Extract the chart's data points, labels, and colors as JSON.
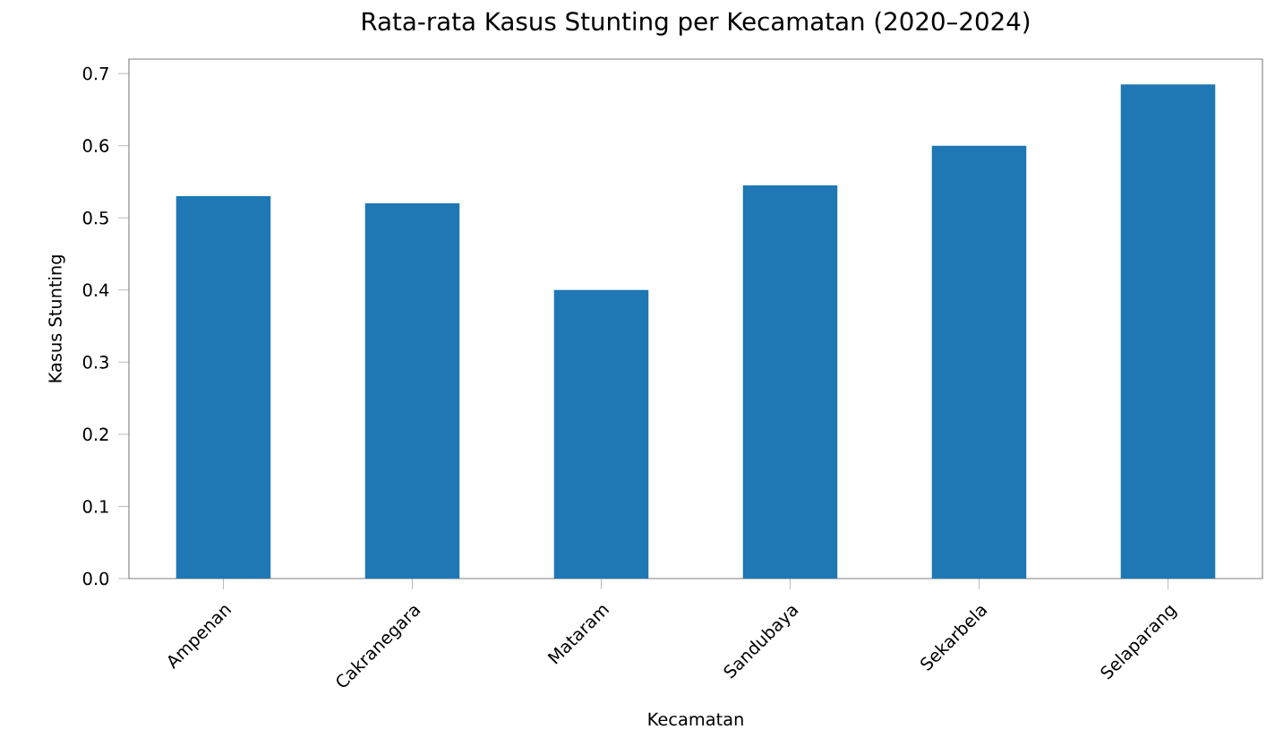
{
  "chart_data": {
    "type": "bar",
    "title": "Rata-rata Kasus Stunting per Kecamatan (2020–2024)",
    "xlabel": "Kecamatan",
    "ylabel": "Kasus Stunting",
    "categories": [
      "Ampenan",
      "Cakranegara",
      "Mataram",
      "Sandubaya",
      "Sekarbela",
      "Selaparang"
    ],
    "values": [
      0.53,
      0.52,
      0.4,
      0.545,
      0.6,
      0.685
    ],
    "color": "#1f77b4",
    "ylim": [
      0,
      0.72
    ],
    "yticks": [
      {
        "value": 0,
        "label": "0.0"
      },
      0.1,
      0.2,
      0.3,
      0.4,
      0.5,
      0.6,
      0.7
    ],
    "grid": false
  }
}
